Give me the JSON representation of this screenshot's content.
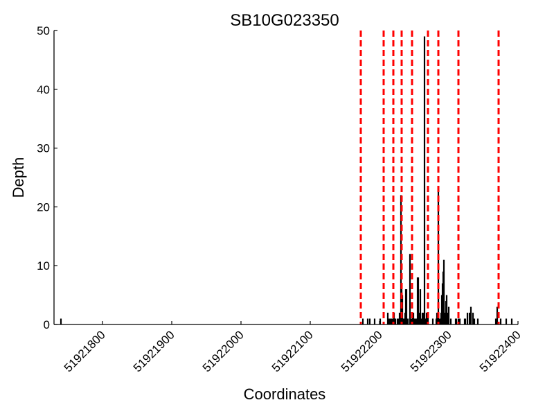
{
  "chart_data": {
    "type": "bar",
    "title": "SB10G023350",
    "xlabel": "Coordinates",
    "ylabel": "Depth",
    "xlim": [
      51921730,
      51922400
    ],
    "ylim": [
      0,
      50
    ],
    "x_ticks": [
      51921800,
      51921900,
      51922000,
      51922100,
      51922200,
      51922300,
      51922400
    ],
    "x_tick_labels": [
      "51921800",
      "51921900",
      "51922000",
      "51922100",
      "51922200",
      "51922300",
      "51922400"
    ],
    "y_ticks": [
      0,
      10,
      20,
      30,
      40,
      50
    ],
    "y_tick_labels": [
      "0",
      "10",
      "20",
      "30",
      "40",
      "50"
    ],
    "grid": false,
    "colors": {
      "bars": "#000000",
      "markers": "#ff0000",
      "axes": "#000000"
    },
    "series": [
      {
        "x": [
          51921740,
          51922176,
          51922183,
          51922186,
          51922193,
          51922201,
          51922212,
          51922213,
          51922214,
          51922216,
          51922218,
          51922219,
          51922220,
          51922221,
          51922223,
          51922226,
          51922227,
          51922228,
          51922229,
          51922230,
          51922231,
          51922232,
          51922233,
          51922234,
          51922235,
          51922236,
          51922237,
          51922238,
          51922239,
          51922241,
          51922244,
          51922245,
          51922246,
          51922247,
          51922248,
          51922249,
          51922250,
          51922251,
          51922252,
          51922253,
          51922254,
          51922255,
          51922256,
          51922257,
          51922258,
          51922259,
          51922260,
          51922262,
          51922263,
          51922264,
          51922265,
          51922266,
          51922267,
          51922268,
          51922270,
          51922277,
          51922282,
          51922283,
          51922284,
          51922285,
          51922286,
          51922287,
          51922288,
          51922289,
          51922290,
          51922291,
          51922292,
          51922293,
          51922294,
          51922295,
          51922296,
          51922297,
          51922298,
          51922299,
          51922300,
          51922303,
          51922310,
          51922311,
          51922314,
          51922316,
          51922323,
          51922324,
          51922327,
          51922330,
          51922332,
          51922335,
          51922336,
          51922337,
          51922342,
          51922368,
          51922370,
          51922375,
          51922383,
          51922391
        ],
        "values": [
          1,
          1,
          1,
          1,
          1,
          1,
          2,
          1,
          1,
          1,
          1,
          1,
          1,
          2,
          1,
          1,
          1,
          1,
          2,
          2,
          22,
          6,
          5,
          1,
          1,
          1,
          2,
          6,
          6,
          1,
          12,
          1,
          1,
          1,
          2,
          2,
          1,
          1,
          1,
          1,
          1,
          8,
          8,
          2,
          1,
          6,
          1,
          2,
          2,
          1,
          49,
          1,
          1,
          2,
          2,
          1,
          1,
          2,
          2,
          23,
          1,
          1,
          1,
          2,
          5,
          7,
          9,
          11,
          1,
          2,
          4,
          5,
          2,
          1,
          3,
          1,
          1,
          1,
          1,
          1,
          1,
          1,
          2,
          2,
          3,
          2,
          1,
          1,
          1,
          1,
          3,
          1,
          1,
          1
        ]
      }
    ],
    "markers": [
      51922173,
      51922206,
      51922220,
      51922232,
      51922247,
      51922270,
      51922285,
      51922314,
      51922372
    ]
  }
}
